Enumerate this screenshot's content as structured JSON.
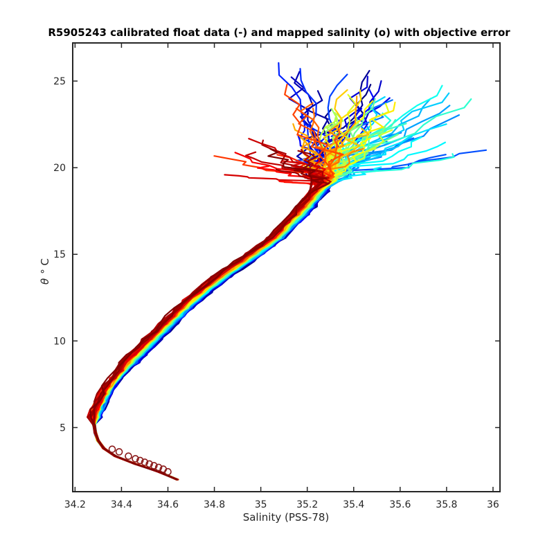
{
  "chart_data": {
    "type": "line",
    "title": "R5905243 calibrated float data (-) and mapped salinity (o) with objective error",
    "xlabel": "Salinity (PSS-78)",
    "ylabel_symbol": "θ",
    "ylabel_unit": "° C",
    "xlim": [
      34.19,
      36.03
    ],
    "ylim": [
      1.3,
      27.2
    ],
    "xticks": [
      34.2,
      34.4,
      34.6,
      34.8,
      35,
      35.2,
      35.4,
      35.6,
      35.8,
      36
    ],
    "xtick_labels": [
      "34.2",
      "34.4",
      "34.6",
      "34.8",
      "35",
      "35.2",
      "35.4",
      "35.6",
      "35.8",
      "36"
    ],
    "yticks": [
      5,
      10,
      15,
      20,
      25
    ],
    "ytick_labels": [
      "5",
      "10",
      "15",
      "20",
      "25"
    ],
    "grid": false,
    "colormap": "jet",
    "colors": {
      "axis": "#262626",
      "marker": "#8b1a1a"
    },
    "core_curve": [
      [
        34.64,
        2.0
      ],
      [
        34.6,
        2.3
      ],
      [
        34.52,
        2.6
      ],
      [
        34.45,
        2.95
      ],
      [
        34.38,
        3.3
      ],
      [
        34.33,
        3.7
      ],
      [
        34.3,
        4.2
      ],
      [
        34.285,
        4.8
      ],
      [
        34.28,
        5.4
      ],
      [
        34.3,
        6.2
      ],
      [
        34.33,
        7.0
      ],
      [
        34.37,
        7.8
      ],
      [
        34.43,
        8.7
      ],
      [
        34.51,
        9.8
      ],
      [
        34.6,
        11.0
      ],
      [
        34.7,
        12.3
      ],
      [
        34.82,
        13.6
      ],
      [
        34.95,
        14.8
      ],
      [
        35.07,
        16.0
      ],
      [
        35.18,
        17.5
      ],
      [
        35.26,
        18.8
      ],
      [
        35.32,
        20.0
      ]
    ],
    "warm_end_clusters": [
      {
        "name": "blue",
        "s_range": [
          35.05,
          35.55
        ],
        "t_top": 26.2,
        "n": 14
      },
      {
        "name": "cyan",
        "s_range": [
          35.3,
          35.95
        ],
        "t_top": 24.8,
        "n": 16
      },
      {
        "name": "yellow",
        "s_range": [
          35.25,
          35.6
        ],
        "t_top": 24.5,
        "n": 14
      },
      {
        "name": "orange",
        "s_range": [
          35.1,
          35.45
        ],
        "t_top": 25.0,
        "n": 12
      },
      {
        "name": "red",
        "s_range": [
          34.8,
          35.3
        ],
        "t_top": 21.9,
        "n": 16
      }
    ],
    "mapped_salinity_points": [
      [
        34.36,
        3.75
      ],
      [
        34.39,
        3.6
      ],
      [
        34.43,
        3.35
      ],
      [
        34.46,
        3.2
      ],
      [
        34.48,
        3.1
      ],
      [
        34.5,
        3.0
      ],
      [
        34.52,
        2.9
      ],
      [
        34.54,
        2.8
      ],
      [
        34.56,
        2.7
      ],
      [
        34.58,
        2.6
      ],
      [
        34.6,
        2.45
      ]
    ],
    "profile_count": 96
  }
}
